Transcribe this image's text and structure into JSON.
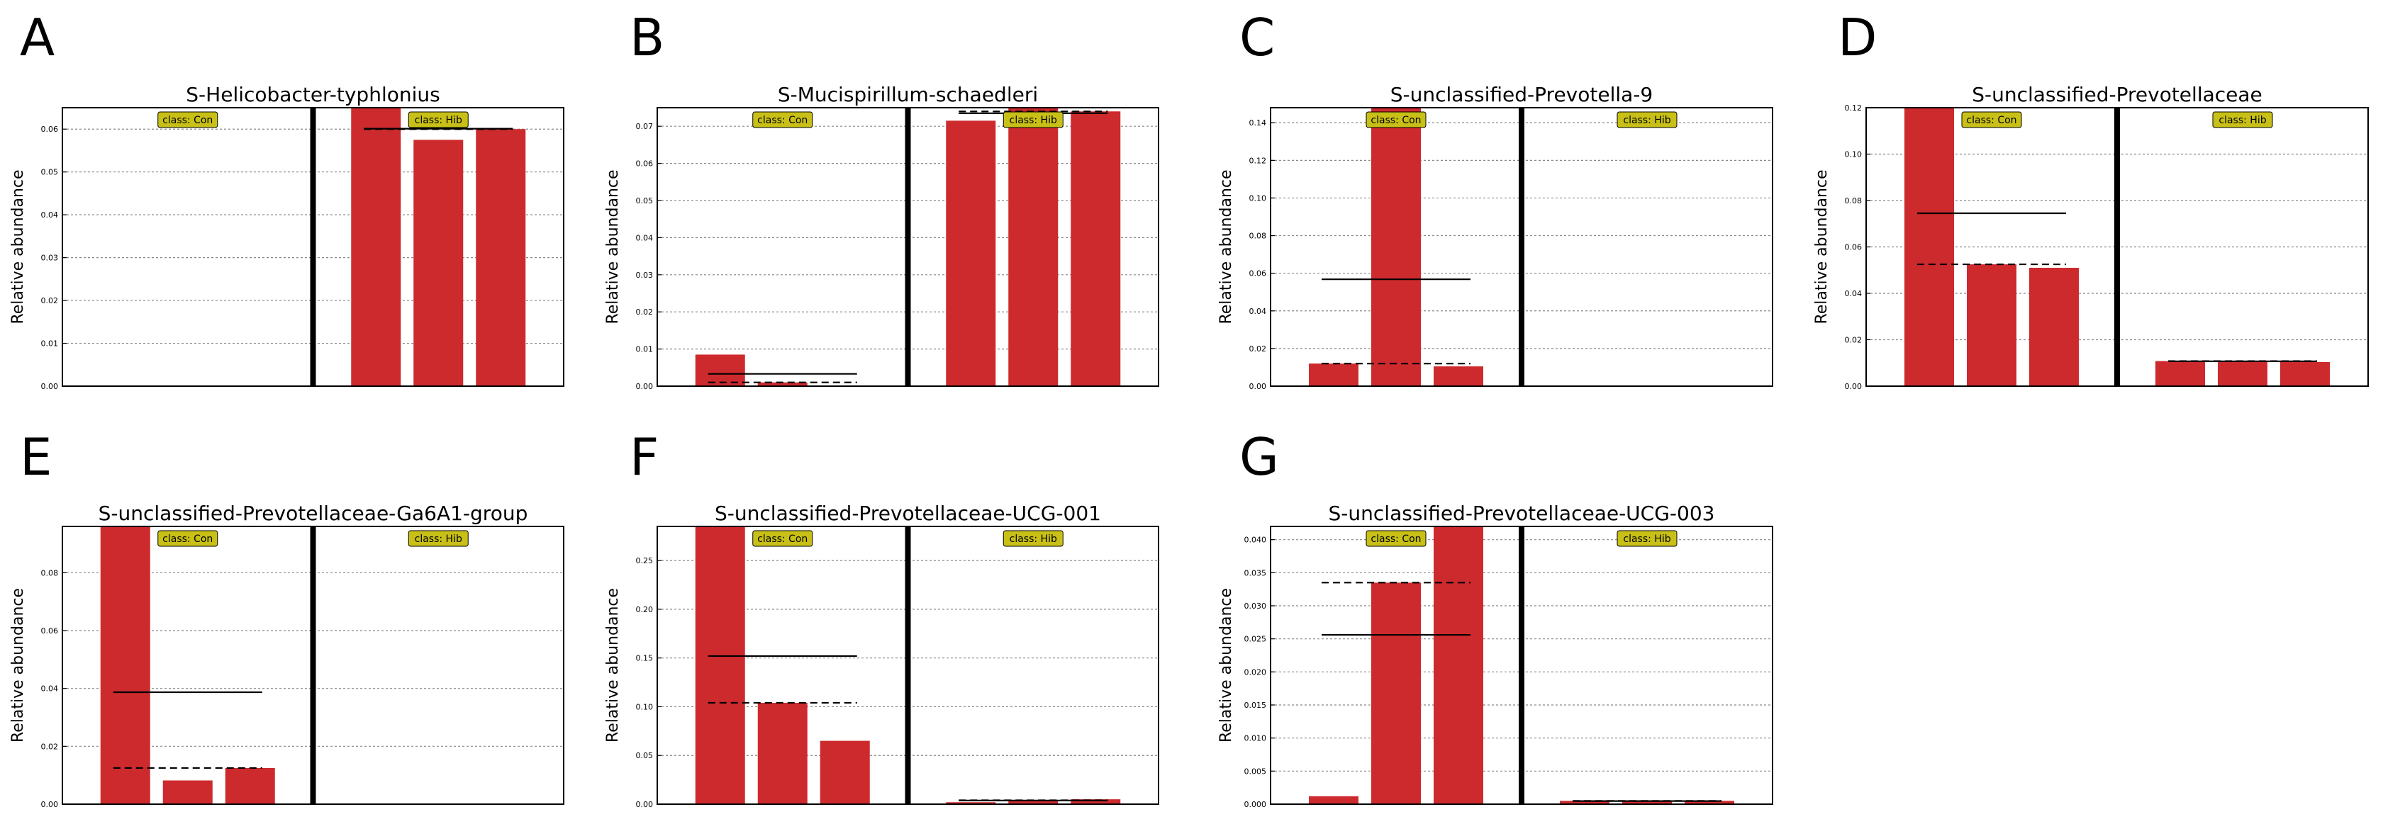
{
  "chart_data": [
    {
      "panel": "A",
      "type": "bar",
      "title": "S-Helicobacter-typhlonius",
      "ylabel": "Relative abundance",
      "xlabel": "",
      "ylim": [
        0,
        0.065
      ],
      "yticks": [
        "0.00",
        "0.01",
        "0.02",
        "0.03",
        "0.04",
        "0.05",
        "0.06"
      ],
      "grid": true,
      "groups": [
        {
          "class_label": "class: Con",
          "values": [
            0,
            0,
            0
          ],
          "mean": 0,
          "median": 0
        },
        {
          "class_label": "class: Hib",
          "values": [
            0.065,
            0.0575,
            0.06
          ],
          "mean": 0.0601,
          "median": 0.06
        }
      ]
    },
    {
      "panel": "B",
      "type": "bar",
      "title": "S-Mucispirillum-schaedleri",
      "ylabel": "Relative abundance",
      "xlabel": "",
      "ylim": [
        0,
        0.075
      ],
      "yticks": [
        "0.00",
        "0.01",
        "0.02",
        "0.03",
        "0.04",
        "0.05",
        "0.06",
        "0.07"
      ],
      "grid": true,
      "groups": [
        {
          "class_label": "class: Con",
          "values": [
            0.0085,
            0.001,
            0
          ],
          "mean": 0.0033,
          "median": 0.001
        },
        {
          "class_label": "class: Hib",
          "values": [
            0.0715,
            0.075,
            0.074
          ],
          "mean": 0.0735,
          "median": 0.074
        }
      ]
    },
    {
      "panel": "C",
      "type": "bar",
      "title": "S-unclassified-Prevotella-9",
      "ylabel": "Relative abundance",
      "xlabel": "",
      "ylim": [
        0,
        0.148
      ],
      "yticks": [
        "0.00",
        "0.02",
        "0.04",
        "0.06",
        "0.08",
        "0.10",
        "0.12",
        "0.14"
      ],
      "grid": true,
      "groups": [
        {
          "class_label": "class: Con",
          "values": [
            0.012,
            0.148,
            0.0105
          ],
          "mean": 0.0568,
          "median": 0.012
        },
        {
          "class_label": "class: Hib",
          "values": [
            0,
            0,
            0
          ],
          "mean": 0,
          "median": 0
        }
      ]
    },
    {
      "panel": "D",
      "type": "bar",
      "title": "S-unclassified-Prevotellaceae",
      "ylabel": "Relative abundance",
      "xlabel": "",
      "ylim": [
        0,
        0.12
      ],
      "yticks": [
        "0.00",
        "0.02",
        "0.04",
        "0.06",
        "0.08",
        "0.10",
        "0.12"
      ],
      "grid": true,
      "groups": [
        {
          "class_label": "class: Con",
          "values": [
            0.12,
            0.0525,
            0.051
          ],
          "mean": 0.0745,
          "median": 0.0525
        },
        {
          "class_label": "class: Hib",
          "values": [
            0.0108,
            0.0108,
            0.0104
          ],
          "mean": 0.0107,
          "median": 0.0108
        }
      ]
    },
    {
      "panel": "E",
      "type": "bar",
      "title": "S-unclassified-Prevotellaceae-Ga6A1-group",
      "ylabel": "Relative abundance",
      "xlabel": "",
      "ylim": [
        0,
        0.096
      ],
      "yticks": [
        "0.00",
        "0.02",
        "0.04",
        "0.06",
        "0.08"
      ],
      "grid": true,
      "groups": [
        {
          "class_label": "class: Con",
          "values": [
            0.096,
            0.0082,
            0.0125
          ],
          "mean": 0.0387,
          "median": 0.0125
        },
        {
          "class_label": "class: Hib",
          "values": [
            0,
            0,
            0
          ],
          "mean": 0,
          "median": 0
        }
      ]
    },
    {
      "panel": "F",
      "type": "bar",
      "title": "S-unclassified-Prevotellaceae-UCG-001",
      "ylabel": "Relative abundance",
      "xlabel": "",
      "ylim": [
        0,
        0.285
      ],
      "yticks": [
        "0.00",
        "0.05",
        "0.10",
        "0.15",
        "0.20",
        "0.25"
      ],
      "grid": true,
      "groups": [
        {
          "class_label": "class: Con",
          "values": [
            0.285,
            0.104,
            0.065
          ],
          "mean": 0.152,
          "median": 0.104
        },
        {
          "class_label": "class: Hib",
          "values": [
            0.002,
            0.004,
            0.005
          ],
          "mean": 0.0037,
          "median": 0.004
        }
      ]
    },
    {
      "panel": "G",
      "type": "bar",
      "title": "S-unclassified-Prevotellaceae-UCG-003",
      "ylabel": "Relative abundance",
      "xlabel": "",
      "ylim": [
        0,
        0.042
      ],
      "yticks": [
        "0.000",
        "0.005",
        "0.010",
        "0.015",
        "0.020",
        "0.025",
        "0.030",
        "0.035",
        "0.040"
      ],
      "grid": true,
      "groups": [
        {
          "class_label": "class: Con",
          "values": [
            0.0012,
            0.0335,
            0.042
          ],
          "mean": 0.0256,
          "median": 0.0335
        },
        {
          "class_label": "class: Hib",
          "values": [
            0.0005,
            0.0004,
            0.0005
          ],
          "mean": 0.00047,
          "median": 0.0005
        }
      ]
    }
  ],
  "colors": {
    "bar": "#cd2a2d",
    "class_label_bg": "#c8c016",
    "grid": "#888888",
    "divider": "#000000"
  }
}
